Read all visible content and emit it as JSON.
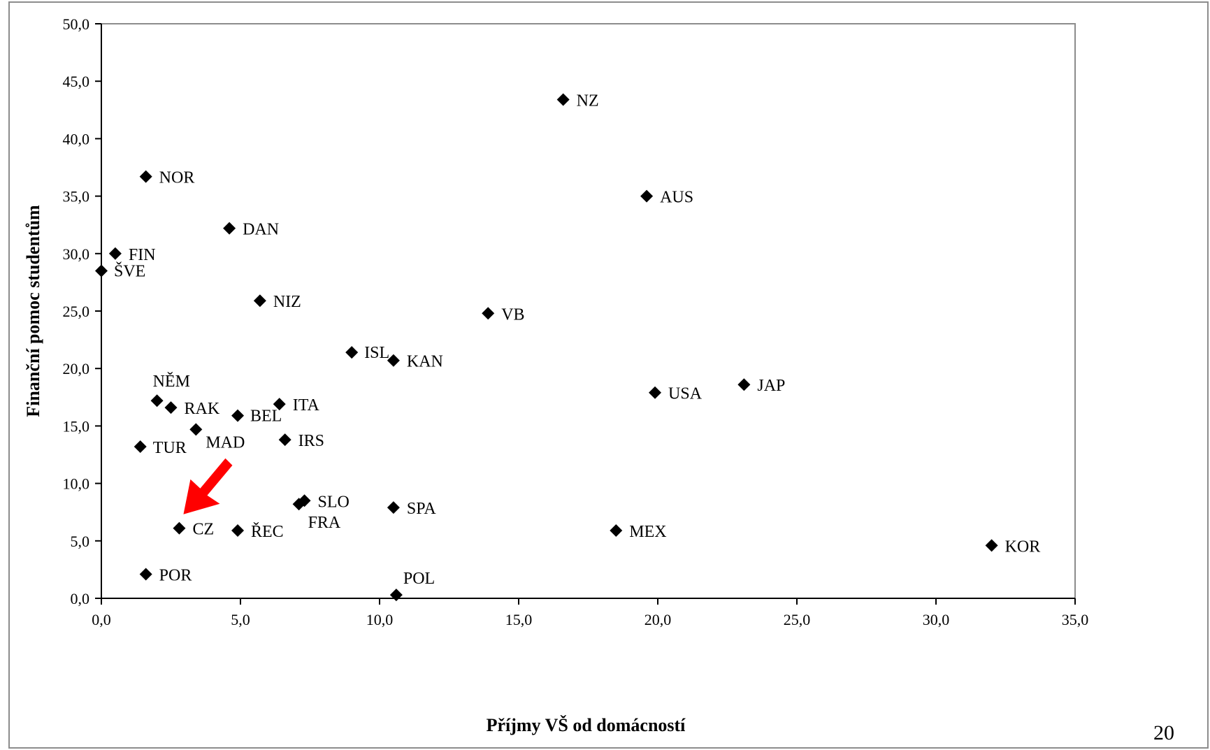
{
  "page_number": "20",
  "chart_data": {
    "type": "scatter",
    "xlabel": "Příjmy VŠ od domácností",
    "ylabel": "Finanční pomoc studentům",
    "xlim": [
      0,
      35
    ],
    "ylim": [
      0,
      50
    ],
    "x_ticks": [
      "0,0",
      "5,0",
      "10,0",
      "15,0",
      "20,0",
      "25,0",
      "30,0",
      "35,0"
    ],
    "y_ticks": [
      "0,0",
      "5,0",
      "10,0",
      "15,0",
      "20,0",
      "25,0",
      "30,0",
      "35,0",
      "40,0",
      "45,0",
      "50,0"
    ],
    "grid": false,
    "legend": "none",
    "marker": "diamond",
    "marker_color": "#000000",
    "points": [
      {
        "label": "NZ",
        "x": 16.6,
        "y": 43.4
      },
      {
        "label": "AUS",
        "x": 19.6,
        "y": 35.0
      },
      {
        "label": "NOR",
        "x": 1.6,
        "y": 36.7
      },
      {
        "label": "DAN",
        "x": 4.6,
        "y": 32.2
      },
      {
        "label": "FIN",
        "x": 0.5,
        "y": 30.0
      },
      {
        "label": "ŠVE",
        "x": 0.0,
        "y": 28.5
      },
      {
        "label": "NIZ",
        "x": 5.7,
        "y": 25.9
      },
      {
        "label": "VB",
        "x": 13.9,
        "y": 24.8
      },
      {
        "label": "ISL",
        "x": 9.0,
        "y": 21.4
      },
      {
        "label": "KAN",
        "x": 10.5,
        "y": 20.7
      },
      {
        "label": "JAP",
        "x": 23.1,
        "y": 18.6
      },
      {
        "label": "USA",
        "x": 19.9,
        "y": 17.9
      },
      {
        "label": "NĚM",
        "x": 2.0,
        "y": 17.2
      },
      {
        "label": "RAK",
        "x": 2.5,
        "y": 16.6
      },
      {
        "label": "ITA",
        "x": 6.4,
        "y": 16.9
      },
      {
        "label": "BEL",
        "x": 4.9,
        "y": 15.9
      },
      {
        "label": "MAD",
        "x": 3.4,
        "y": 14.7
      },
      {
        "label": "TUR",
        "x": 1.4,
        "y": 13.2
      },
      {
        "label": "IRS",
        "x": 6.6,
        "y": 13.8
      },
      {
        "label": "SLO",
        "x": 7.3,
        "y": 8.5
      },
      {
        "label": "FRA",
        "x": 7.1,
        "y": 8.2
      },
      {
        "label": "SPA",
        "x": 10.5,
        "y": 7.9
      },
      {
        "label": "CZ",
        "x": 2.8,
        "y": 6.1
      },
      {
        "label": "ŘEC",
        "x": 4.9,
        "y": 5.9
      },
      {
        "label": "MEX",
        "x": 18.5,
        "y": 5.9
      },
      {
        "label": "KOR",
        "x": 32.0,
        "y": 4.6
      },
      {
        "label": "POR",
        "x": 1.6,
        "y": 2.1
      },
      {
        "label": "POL",
        "x": 10.6,
        "y": 0.3
      }
    ],
    "highlight": {
      "label": "CZ",
      "marker": "arrow",
      "color": "#ff0000"
    }
  }
}
